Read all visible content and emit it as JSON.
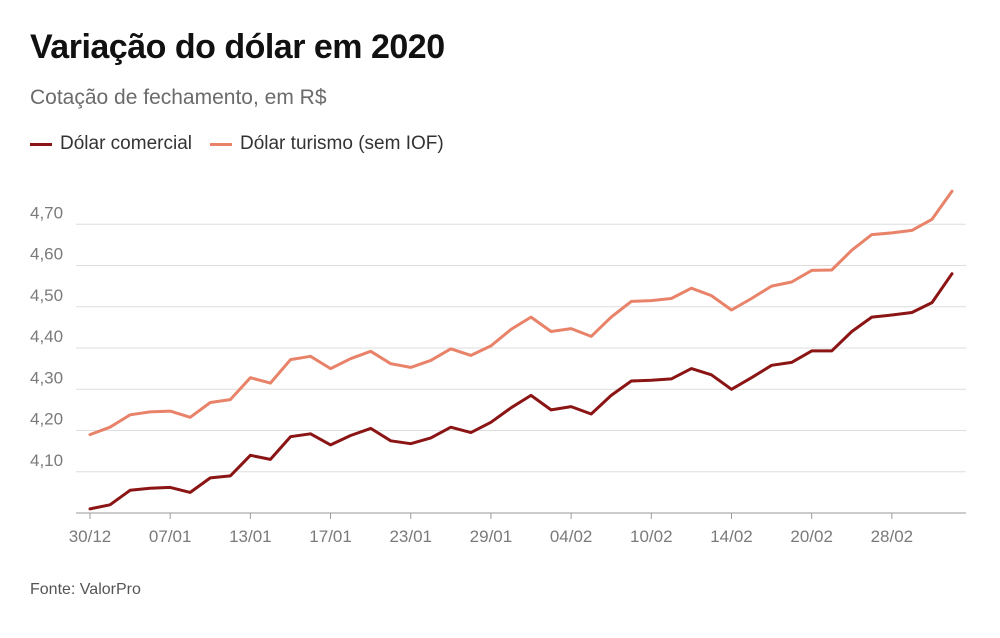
{
  "chart_data": {
    "type": "line",
    "title": "Variação do dólar em 2020",
    "subtitle": "Cotação de fechamento, em R$",
    "source": "Fonte: ValorPro",
    "xlabel": "",
    "ylabel": "",
    "ylim": [
      4.0,
      4.8
    ],
    "yticks": [
      4.1,
      4.2,
      4.3,
      4.4,
      4.5,
      4.6,
      4.7
    ],
    "ytick_labels": [
      "4,10",
      "4,20",
      "4,30",
      "4,40",
      "4,50",
      "4,60",
      "4,70"
    ],
    "xticks": [
      {
        "index": 0,
        "label": "30/12"
      },
      {
        "index": 4,
        "label": "07/01"
      },
      {
        "index": 8,
        "label": "13/01"
      },
      {
        "index": 12,
        "label": "17/01"
      },
      {
        "index": 16,
        "label": "23/01"
      },
      {
        "index": 20,
        "label": "29/01"
      },
      {
        "index": 24,
        "label": "04/02"
      },
      {
        "index": 28,
        "label": "10/02"
      },
      {
        "index": 32,
        "label": "14/02"
      },
      {
        "index": 36,
        "label": "20/02"
      },
      {
        "index": 40,
        "label": "28/02"
      }
    ],
    "series": [
      {
        "name": "Dólar comercial",
        "color": "#8b1414",
        "values": [
          4.01,
          4.02,
          4.055,
          4.06,
          4.062,
          4.05,
          4.085,
          4.09,
          4.14,
          4.13,
          4.185,
          4.192,
          4.165,
          4.188,
          4.205,
          4.175,
          4.168,
          4.182,
          4.208,
          4.195,
          4.22,
          4.255,
          4.285,
          4.25,
          4.258,
          4.24,
          4.285,
          4.32,
          4.322,
          4.325,
          4.35,
          4.335,
          4.3,
          4.328,
          4.358,
          4.365,
          4.393,
          4.393,
          4.44,
          4.475,
          4.48,
          4.486,
          4.51,
          4.58
        ]
      },
      {
        "name": "Dólar turismo (sem IOF)",
        "color": "#e8836a",
        "values": [
          4.19,
          4.208,
          4.238,
          4.245,
          4.247,
          4.232,
          4.268,
          4.275,
          4.328,
          4.315,
          4.372,
          4.38,
          4.35,
          4.374,
          4.392,
          4.362,
          4.353,
          4.37,
          4.398,
          4.382,
          4.405,
          4.445,
          4.475,
          4.44,
          4.447,
          4.428,
          4.475,
          4.513,
          4.515,
          4.52,
          4.545,
          4.527,
          4.492,
          4.52,
          4.55,
          4.56,
          4.588,
          4.589,
          4.637,
          4.675,
          4.679,
          4.685,
          4.712,
          4.78
        ]
      }
    ],
    "legend": "top-left",
    "grid": true
  }
}
